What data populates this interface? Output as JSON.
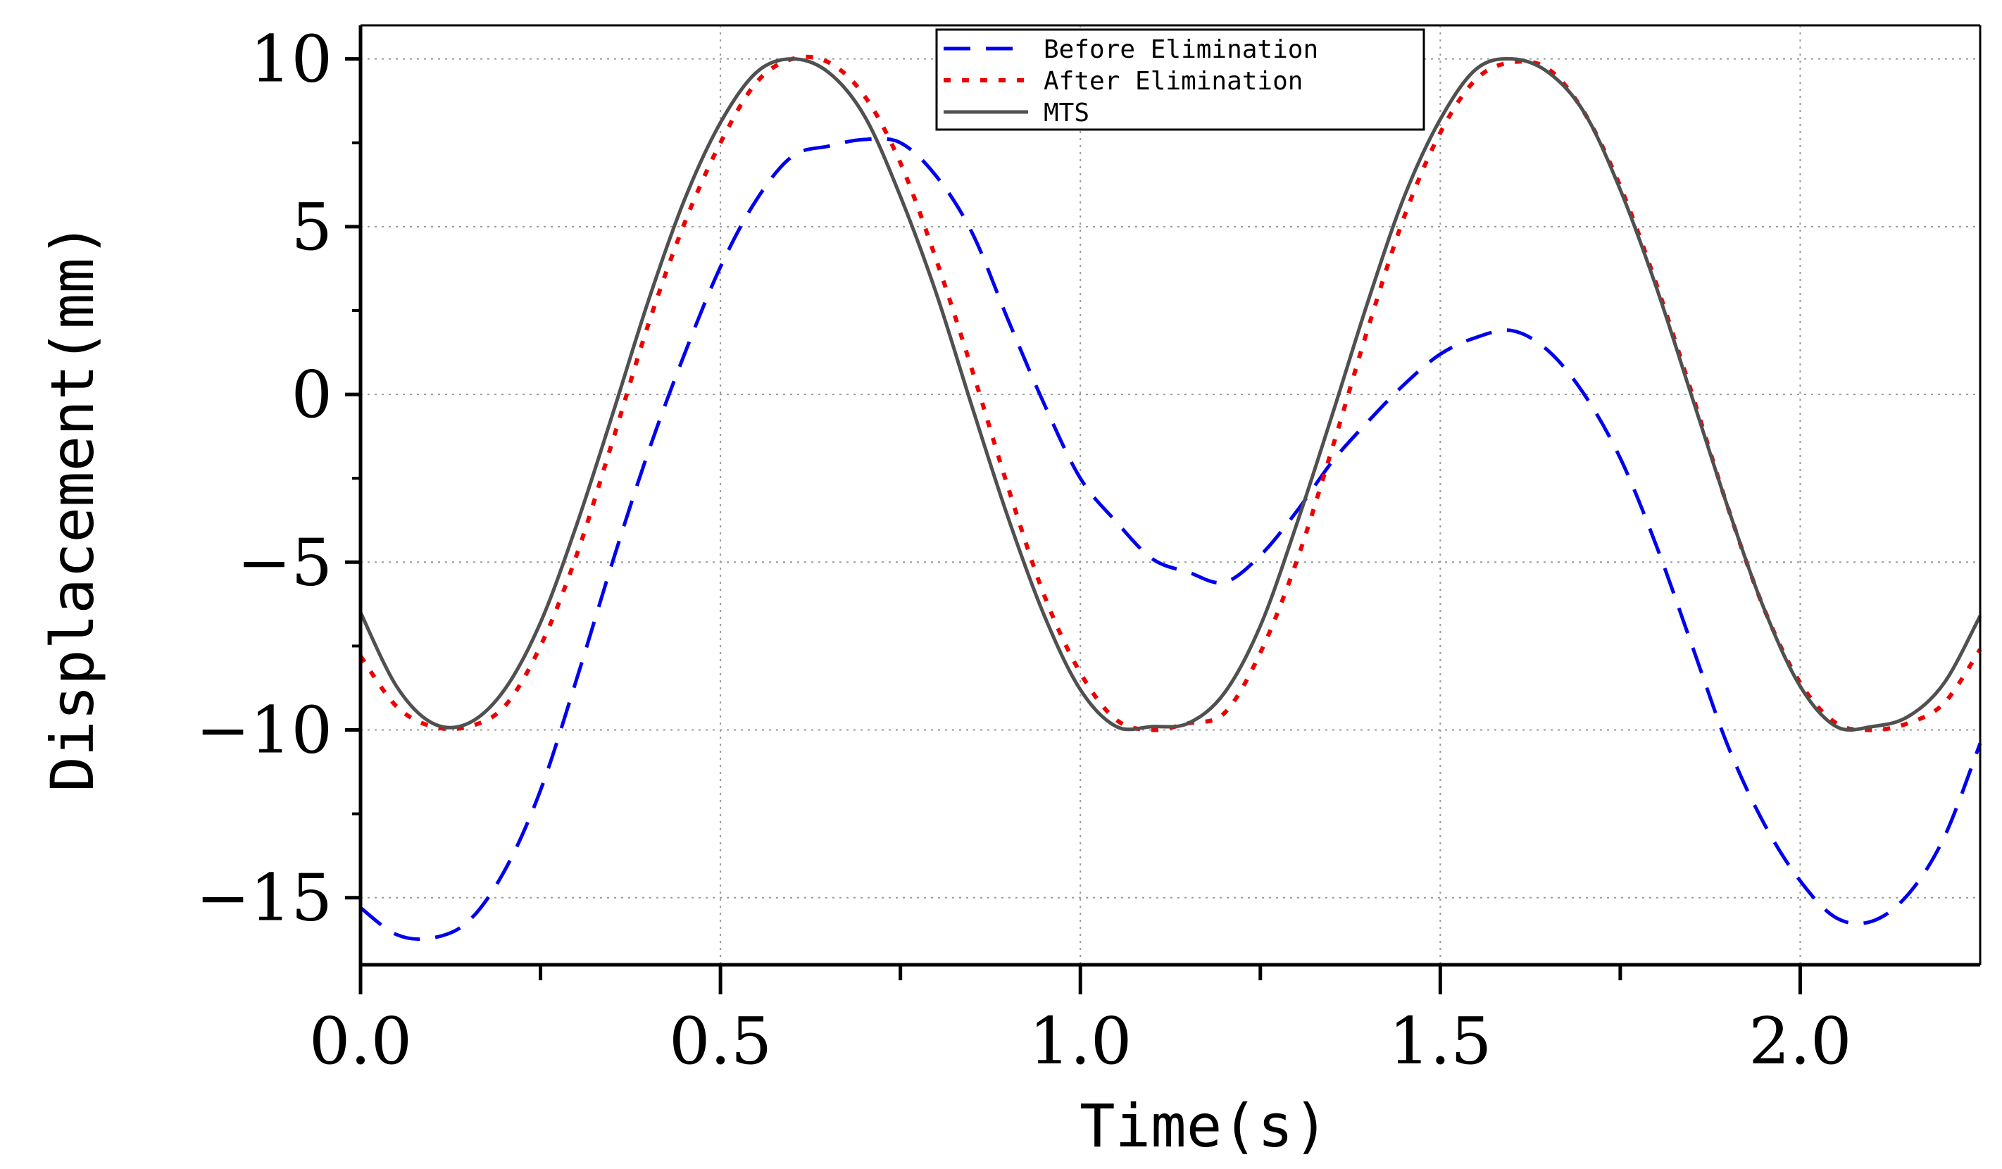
{
  "chart_data": {
    "type": "line",
    "xlabel": "Time(s)",
    "ylabel": "Displacement(mm)",
    "xlim": [
      0,
      2.25
    ],
    "ylim": [
      -17,
      11
    ],
    "x_ticks": [
      0,
      0.5,
      1.0,
      1.5,
      2.0
    ],
    "x_tick_labels": [
      "0.0",
      "0.5",
      "1.0",
      "1.5",
      "2.0"
    ],
    "y_ticks": [
      10,
      5,
      0,
      -5,
      -10,
      -15
    ],
    "y_tick_labels": [
      "10",
      "5",
      "0",
      "−5",
      "−10",
      "−15"
    ],
    "grid": true,
    "legend_position": "top-center",
    "x": [
      0,
      0.05,
      0.1,
      0.15,
      0.2,
      0.25,
      0.3,
      0.35,
      0.4,
      0.45,
      0.5,
      0.55,
      0.6,
      0.65,
      0.7,
      0.75,
      0.8,
      0.85,
      0.9,
      0.95,
      1.0,
      1.05,
      1.1,
      1.15,
      1.2,
      1.25,
      1.3,
      1.35,
      1.4,
      1.45,
      1.5,
      1.55,
      1.6,
      1.65,
      1.7,
      1.75,
      1.8,
      1.85,
      1.9,
      1.95,
      2.0,
      2.05,
      2.1,
      2.15,
      2.2,
      2.25
    ],
    "series": [
      {
        "name": "Before Elimination",
        "color": "#0000ee",
        "values": [
          -15.3,
          -16.1,
          -16.2,
          -15.7,
          -14.2,
          -11.8,
          -8.5,
          -5.0,
          -1.7,
          1.2,
          3.8,
          5.8,
          7.1,
          7.4,
          7.6,
          7.5,
          6.5,
          4.8,
          2.2,
          -0.3,
          -2.5,
          -3.8,
          -4.9,
          -5.3,
          -5.6,
          -4.8,
          -3.5,
          -2.0,
          -0.8,
          0.3,
          1.2,
          1.7,
          1.9,
          1.3,
          0.0,
          -1.9,
          -4.5,
          -7.5,
          -10.5,
          -12.8,
          -14.5,
          -15.6,
          -15.7,
          -14.9,
          -13.2,
          -10.4
        ]
      },
      {
        "name": "After Elimination",
        "color": "#ee0000",
        "values": [
          -7.8,
          -9.3,
          -9.9,
          -9.9,
          -9.3,
          -7.5,
          -4.8,
          -1.4,
          2.1,
          5.1,
          7.5,
          9.3,
          10.0,
          9.9,
          8.9,
          6.9,
          4.0,
          0.7,
          -2.8,
          -6.0,
          -8.3,
          -9.7,
          -10.0,
          -9.8,
          -9.5,
          -7.7,
          -5.0,
          -1.6,
          2.0,
          5.3,
          7.8,
          9.4,
          9.9,
          9.7,
          8.4,
          6.2,
          3.3,
          0.0,
          -3.4,
          -6.4,
          -8.6,
          -9.8,
          -10.0,
          -9.8,
          -9.2,
          -7.6
        ]
      },
      {
        "name": "MTS",
        "color": "#505050",
        "values": [
          -6.5,
          -8.7,
          -9.8,
          -9.8,
          -8.8,
          -6.8,
          -3.9,
          -0.6,
          2.8,
          5.8,
          8.1,
          9.6,
          10.0,
          9.6,
          8.3,
          5.9,
          3.0,
          -0.4,
          -3.7,
          -6.6,
          -8.8,
          -9.9,
          -9.9,
          -9.8,
          -8.9,
          -6.9,
          -3.9,
          -0.6,
          2.8,
          5.9,
          8.2,
          9.7,
          10.0,
          9.6,
          8.4,
          6.1,
          3.2,
          -0.1,
          -3.4,
          -6.4,
          -8.7,
          -9.9,
          -9.9,
          -9.6,
          -8.6,
          -6.6
        ]
      }
    ]
  }
}
